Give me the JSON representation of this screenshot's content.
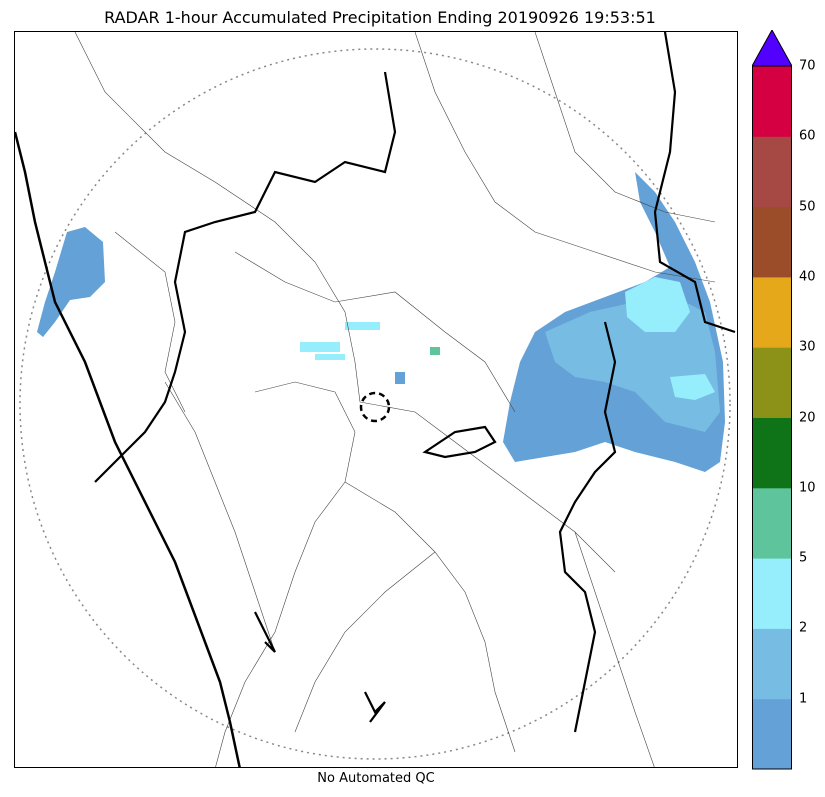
{
  "title": "RADAR 1-hour Accumulated Precipitation Ending 20190926 19:53:51",
  "footer": "No Automated QC",
  "colorbar": {
    "ticks": [
      "1",
      "2",
      "5",
      "10",
      "20",
      "30",
      "40",
      "50",
      "60",
      "70"
    ],
    "colors": [
      "#63a1d6",
      "#77bde3",
      "#96eefd",
      "#5dc49b",
      "#0f7318",
      "#8c9217",
      "#e6a81b",
      "#9a4d28",
      "#a64945",
      "#d40042"
    ],
    "extend_color": "#5200ff"
  },
  "map": {
    "range_ring": "dotted",
    "boundaries": [
      "state-border",
      "district-border",
      "coastline"
    ]
  }
}
